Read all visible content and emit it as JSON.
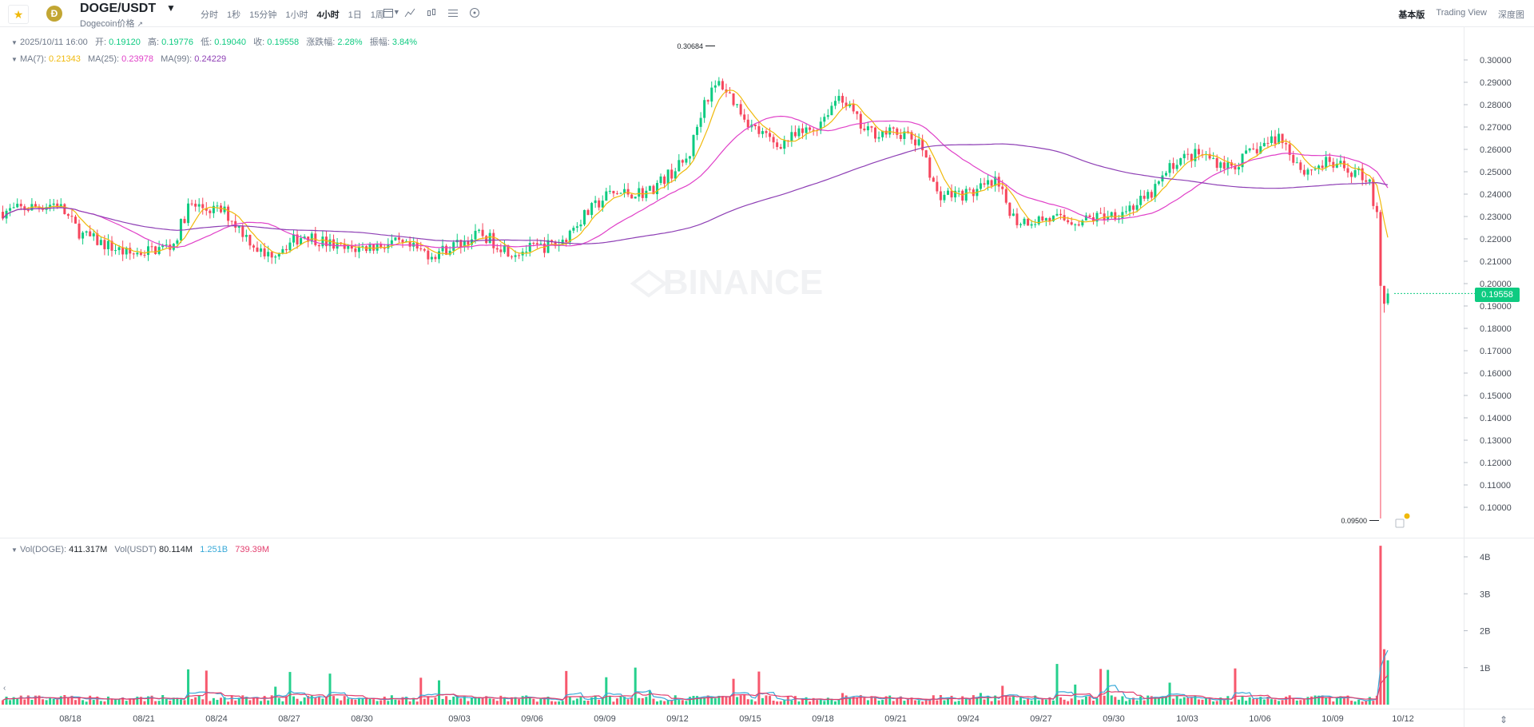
{
  "header": {
    "pair": "DOGE/USDT",
    "subtitle": "Dogecoin价格",
    "intervals": [
      "分时",
      "1秒",
      "15分钟",
      "1小时",
      "4小时",
      "1日",
      "1周"
    ],
    "active_interval": "4小时",
    "views": [
      "基本版",
      "Trading View",
      "深度图"
    ],
    "active_view": "基本版"
  },
  "ohlc": {
    "date": "2025/10/11 16:00",
    "open_label": "开:",
    "open": "0.19120",
    "high_label": "高:",
    "high": "0.19776",
    "low_label": "低:",
    "low": "0.19040",
    "close_label": "收:",
    "close": "0.19558",
    "change_label": "涨跌幅:",
    "change": "2.28%",
    "amp_label": "振幅:",
    "amp": "3.84%"
  },
  "ma": {
    "ma7_label": "MA(7):",
    "ma7": "0.21343",
    "ma25_label": "MA(25):",
    "ma25": "0.23978",
    "ma99_label": "MA(99):",
    "ma99": "0.24229"
  },
  "volume": {
    "vol_doge_label": "Vol(DOGE):",
    "vol_doge": "411.317M",
    "vol_usdt_label": "Vol(USDT)",
    "vol_usdt": "80.114M",
    "ma1": "1.251B",
    "ma2": "739.39M",
    "axis": [
      "4B",
      "3B",
      "2B",
      "1B"
    ]
  },
  "price_axis": [
    "0.30000",
    "0.29000",
    "0.28000",
    "0.27000",
    "0.26000",
    "0.25000",
    "0.24000",
    "0.23000",
    "0.22000",
    "0.21000",
    "0.20000",
    "0.19000",
    "0.18000",
    "0.17000",
    "0.16000",
    "0.15000",
    "0.14000",
    "0.13000",
    "0.12000",
    "0.11000",
    "0.10000"
  ],
  "current_price": "0.19558",
  "high_marker": "0.30684",
  "low_marker": "0.09500",
  "watermark": "BINANCE",
  "date_axis": [
    "08/18",
    "08/21",
    "08/24",
    "08/27",
    "08/30",
    "09/03",
    "09/06",
    "09/09",
    "09/12",
    "09/15",
    "09/18",
    "09/21",
    "09/24",
    "09/27",
    "09/30",
    "10/03",
    "10/06",
    "10/09",
    "10/12"
  ],
  "colors": {
    "up": "#0ecb81",
    "down": "#f6465d",
    "ma7": "#f0b90b",
    "ma25": "#e040c8",
    "ma99": "#8e3fb5",
    "vol_ma1": "#38a9d8",
    "vol_ma2": "#e33e6e"
  }
}
